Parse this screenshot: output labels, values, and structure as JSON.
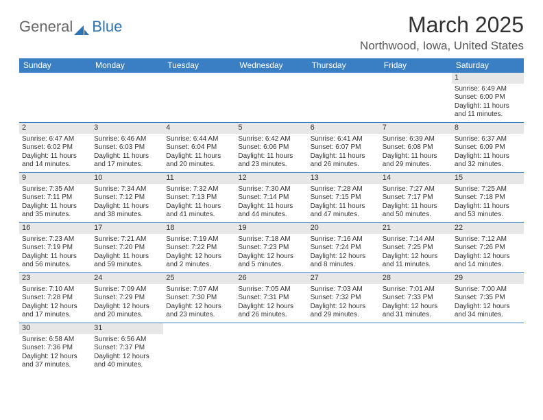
{
  "logo": {
    "text1": "General",
    "text2": "Blue"
  },
  "title": "March 2025",
  "location": "Northwood, Iowa, United States",
  "colors": {
    "header_bg": "#3a7fc4",
    "header_fg": "#ffffff",
    "daynum_bg": "#e7e7e7",
    "cell_border": "#3a7fc4",
    "text": "#333333",
    "logo_blue": "#2e74b5"
  },
  "weekdays": [
    "Sunday",
    "Monday",
    "Tuesday",
    "Wednesday",
    "Thursday",
    "Friday",
    "Saturday"
  ],
  "layout": {
    "columns": 7,
    "rows": 6,
    "first_day_column": 6
  },
  "days": [
    {
      "n": 1,
      "sunrise": "6:49 AM",
      "sunset": "6:00 PM",
      "daylight": "11 hours and 11 minutes."
    },
    {
      "n": 2,
      "sunrise": "6:47 AM",
      "sunset": "6:02 PM",
      "daylight": "11 hours and 14 minutes."
    },
    {
      "n": 3,
      "sunrise": "6:46 AM",
      "sunset": "6:03 PM",
      "daylight": "11 hours and 17 minutes."
    },
    {
      "n": 4,
      "sunrise": "6:44 AM",
      "sunset": "6:04 PM",
      "daylight": "11 hours and 20 minutes."
    },
    {
      "n": 5,
      "sunrise": "6:42 AM",
      "sunset": "6:06 PM",
      "daylight": "11 hours and 23 minutes."
    },
    {
      "n": 6,
      "sunrise": "6:41 AM",
      "sunset": "6:07 PM",
      "daylight": "11 hours and 26 minutes."
    },
    {
      "n": 7,
      "sunrise": "6:39 AM",
      "sunset": "6:08 PM",
      "daylight": "11 hours and 29 minutes."
    },
    {
      "n": 8,
      "sunrise": "6:37 AM",
      "sunset": "6:09 PM",
      "daylight": "11 hours and 32 minutes."
    },
    {
      "n": 9,
      "sunrise": "7:35 AM",
      "sunset": "7:11 PM",
      "daylight": "11 hours and 35 minutes."
    },
    {
      "n": 10,
      "sunrise": "7:34 AM",
      "sunset": "7:12 PM",
      "daylight": "11 hours and 38 minutes."
    },
    {
      "n": 11,
      "sunrise": "7:32 AM",
      "sunset": "7:13 PM",
      "daylight": "11 hours and 41 minutes."
    },
    {
      "n": 12,
      "sunrise": "7:30 AM",
      "sunset": "7:14 PM",
      "daylight": "11 hours and 44 minutes."
    },
    {
      "n": 13,
      "sunrise": "7:28 AM",
      "sunset": "7:15 PM",
      "daylight": "11 hours and 47 minutes."
    },
    {
      "n": 14,
      "sunrise": "7:27 AM",
      "sunset": "7:17 PM",
      "daylight": "11 hours and 50 minutes."
    },
    {
      "n": 15,
      "sunrise": "7:25 AM",
      "sunset": "7:18 PM",
      "daylight": "11 hours and 53 minutes."
    },
    {
      "n": 16,
      "sunrise": "7:23 AM",
      "sunset": "7:19 PM",
      "daylight": "11 hours and 56 minutes."
    },
    {
      "n": 17,
      "sunrise": "7:21 AM",
      "sunset": "7:20 PM",
      "daylight": "11 hours and 59 minutes."
    },
    {
      "n": 18,
      "sunrise": "7:19 AM",
      "sunset": "7:22 PM",
      "daylight": "12 hours and 2 minutes."
    },
    {
      "n": 19,
      "sunrise": "7:18 AM",
      "sunset": "7:23 PM",
      "daylight": "12 hours and 5 minutes."
    },
    {
      "n": 20,
      "sunrise": "7:16 AM",
      "sunset": "7:24 PM",
      "daylight": "12 hours and 8 minutes."
    },
    {
      "n": 21,
      "sunrise": "7:14 AM",
      "sunset": "7:25 PM",
      "daylight": "12 hours and 11 minutes."
    },
    {
      "n": 22,
      "sunrise": "7:12 AM",
      "sunset": "7:26 PM",
      "daylight": "12 hours and 14 minutes."
    },
    {
      "n": 23,
      "sunrise": "7:10 AM",
      "sunset": "7:28 PM",
      "daylight": "12 hours and 17 minutes."
    },
    {
      "n": 24,
      "sunrise": "7:09 AM",
      "sunset": "7:29 PM",
      "daylight": "12 hours and 20 minutes."
    },
    {
      "n": 25,
      "sunrise": "7:07 AM",
      "sunset": "7:30 PM",
      "daylight": "12 hours and 23 minutes."
    },
    {
      "n": 26,
      "sunrise": "7:05 AM",
      "sunset": "7:31 PM",
      "daylight": "12 hours and 26 minutes."
    },
    {
      "n": 27,
      "sunrise": "7:03 AM",
      "sunset": "7:32 PM",
      "daylight": "12 hours and 29 minutes."
    },
    {
      "n": 28,
      "sunrise": "7:01 AM",
      "sunset": "7:33 PM",
      "daylight": "12 hours and 31 minutes."
    },
    {
      "n": 29,
      "sunrise": "7:00 AM",
      "sunset": "7:35 PM",
      "daylight": "12 hours and 34 minutes."
    },
    {
      "n": 30,
      "sunrise": "6:58 AM",
      "sunset": "7:36 PM",
      "daylight": "12 hours and 37 minutes."
    },
    {
      "n": 31,
      "sunrise": "6:56 AM",
      "sunset": "7:37 PM",
      "daylight": "12 hours and 40 minutes."
    }
  ],
  "labels": {
    "sunrise": "Sunrise:",
    "sunset": "Sunset:",
    "daylight": "Daylight:"
  }
}
